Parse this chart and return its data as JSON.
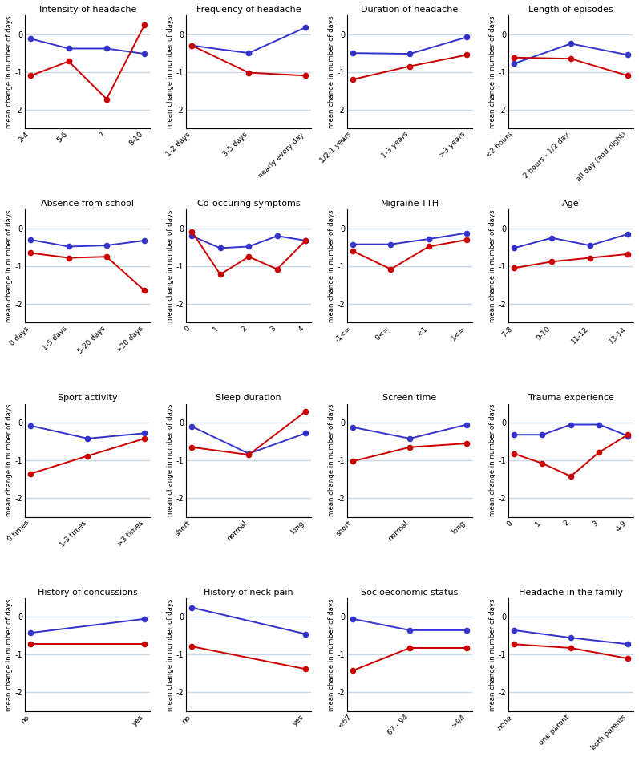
{
  "panels": [
    {
      "title": "Intensity of headache",
      "xlabel_labels": [
        "2-4",
        "5-6",
        "7",
        "8-10"
      ],
      "blue": [
        -0.12,
        -0.38,
        -0.38,
        -0.52
      ],
      "red": [
        -1.1,
        -0.72,
        -1.72,
        0.25
      ],
      "ylim": [
        -2.5,
        0.5
      ],
      "yticks": [
        0,
        -1,
        -2
      ]
    },
    {
      "title": "Frequency of headache",
      "xlabel_labels": [
        "1-2 days",
        "3-5 days",
        "nearly every day"
      ],
      "blue": [
        -0.3,
        -0.5,
        0.18
      ],
      "red": [
        -0.3,
        -1.02,
        -1.1
      ],
      "ylim": [
        -2.5,
        0.5
      ],
      "yticks": [
        0,
        -1,
        -2
      ]
    },
    {
      "title": "Duration of headache",
      "xlabel_labels": [
        "1/2-1 years",
        "1-3 years",
        ">3 years"
      ],
      "blue": [
        -0.5,
        -0.52,
        -0.08
      ],
      "red": [
        -1.2,
        -0.85,
        -0.55
      ],
      "ylim": [
        -2.5,
        0.5
      ],
      "yticks": [
        0,
        -1,
        -2
      ]
    },
    {
      "title": "Length of episodes",
      "xlabel_labels": [
        "<2 hours",
        "2 hours - 1/2 day",
        "all day (and night)"
      ],
      "blue": [
        -0.78,
        -0.25,
        -0.55
      ],
      "red": [
        -0.62,
        -0.65,
        -1.1
      ],
      "ylim": [
        -2.5,
        0.5
      ],
      "yticks": [
        0,
        -1,
        -2
      ]
    },
    {
      "title": "Absence from school",
      "xlabel_labels": [
        "0 days",
        "1-5 days",
        "5-20 days",
        ">20 days"
      ],
      "blue": [
        -0.3,
        -0.48,
        -0.45,
        -0.32
      ],
      "red": [
        -0.65,
        -0.78,
        -0.75,
        -1.65
      ],
      "ylim": [
        -2.5,
        0.5
      ],
      "yticks": [
        0,
        -1,
        -2
      ]
    },
    {
      "title": "Co-occuring symptoms",
      "xlabel_labels": [
        "0",
        "1",
        "2",
        "3",
        "4"
      ],
      "blue": [
        -0.2,
        -0.52,
        -0.48,
        -0.2,
        -0.32
      ],
      "red": [
        -0.08,
        -1.22,
        -0.75,
        -1.08,
        -0.32
      ],
      "ylim": [
        -2.5,
        0.5
      ],
      "yticks": [
        0,
        -1,
        -2
      ]
    },
    {
      "title": "Migraine-TTH",
      "xlabel_labels": [
        "-1<=",
        "0<=",
        "<1",
        "1<="
      ],
      "blue": [
        -0.42,
        -0.42,
        -0.28,
        -0.12
      ],
      "red": [
        -0.6,
        -1.08,
        -0.48,
        -0.3
      ],
      "ylim": [
        -2.5,
        0.5
      ],
      "yticks": [
        0,
        -1,
        -2
      ]
    },
    {
      "title": "Age",
      "xlabel_labels": [
        "7-8",
        "9-10",
        "11-12",
        "13-14"
      ],
      "blue": [
        -0.52,
        -0.25,
        -0.45,
        -0.15
      ],
      "red": [
        -1.05,
        -0.88,
        -0.78,
        -0.68
      ],
      "ylim": [
        -2.5,
        0.5
      ],
      "yticks": [
        0,
        -1,
        -2
      ]
    },
    {
      "title": "Sport activity",
      "xlabel_labels": [
        "0 times",
        "1-3 times",
        ">3 times"
      ],
      "blue": [
        -0.08,
        -0.42,
        -0.28
      ],
      "red": [
        -1.35,
        -0.88,
        -0.42
      ],
      "ylim": [
        -2.5,
        0.5
      ],
      "yticks": [
        0,
        -1,
        -2
      ]
    },
    {
      "title": "Sleep duration",
      "xlabel_labels": [
        "short",
        "normal",
        "long"
      ],
      "blue": [
        -0.1,
        -0.82,
        -0.28
      ],
      "red": [
        -0.65,
        -0.85,
        0.3
      ],
      "ylim": [
        -2.5,
        0.5
      ],
      "yticks": [
        0,
        -1,
        -2
      ]
    },
    {
      "title": "Screen time",
      "xlabel_labels": [
        "short",
        "normal",
        "long"
      ],
      "blue": [
        -0.12,
        -0.42,
        -0.05
      ],
      "red": [
        -1.02,
        -0.65,
        -0.55
      ],
      "ylim": [
        -2.5,
        0.5
      ],
      "yticks": [
        0,
        -1,
        -2
      ]
    },
    {
      "title": "Trauma experience",
      "xlabel_labels": [
        "0",
        "1",
        "2",
        "3",
        "4-9"
      ],
      "blue": [
        -0.32,
        -0.32,
        -0.05,
        -0.05,
        -0.35
      ],
      "red": [
        -0.82,
        -1.08,
        -1.42,
        -0.78,
        -0.32
      ],
      "ylim": [
        -2.5,
        0.5
      ],
      "yticks": [
        0,
        -1,
        -2
      ]
    },
    {
      "title": "History of concussions",
      "xlabel_labels": [
        "no",
        "yes"
      ],
      "blue": [
        -0.42,
        -0.05
      ],
      "red": [
        -0.72,
        -0.72
      ],
      "ylim": [
        -2.5,
        0.5
      ],
      "yticks": [
        0,
        -1,
        -2
      ]
    },
    {
      "title": "History of neck pain",
      "xlabel_labels": [
        "no",
        "yes"
      ],
      "blue": [
        0.25,
        -0.45
      ],
      "red": [
        -0.78,
        -1.38
      ],
      "ylim": [
        -2.5,
        0.5
      ],
      "yticks": [
        0,
        -1,
        -2
      ]
    },
    {
      "title": "Socioeconomic status",
      "xlabel_labels": [
        "<67",
        "67 - 94",
        ">94"
      ],
      "blue": [
        -0.05,
        -0.35,
        -0.35
      ],
      "red": [
        -1.42,
        -0.82,
        -0.82
      ],
      "ylim": [
        -2.5,
        0.5
      ],
      "yticks": [
        0,
        -1,
        -2
      ]
    },
    {
      "title": "Headache in the family",
      "xlabel_labels": [
        "none",
        "one parent",
        "both parents"
      ],
      "blue": [
        -0.35,
        -0.55,
        -0.72
      ],
      "red": [
        -0.72,
        -0.82,
        -1.1
      ],
      "ylim": [
        -2.5,
        0.5
      ],
      "yticks": [
        0,
        -1,
        -2
      ]
    }
  ],
  "blue_color": "#3333CC",
  "red_color": "#CC0000",
  "ylabel": "mean change in number of days",
  "plot_bg": "#FFFFFF",
  "grid_color": "#C8D8E8",
  "spine_color": "#000000"
}
